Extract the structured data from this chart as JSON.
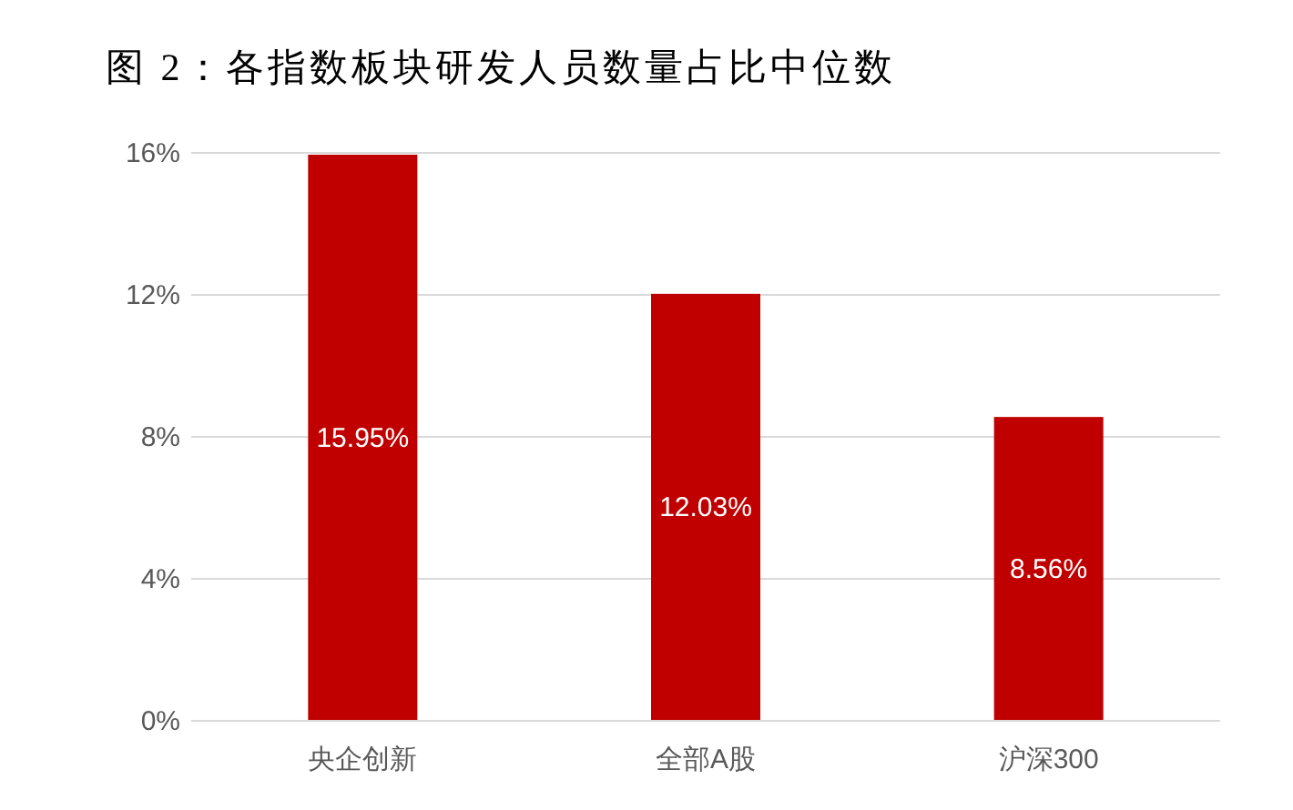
{
  "chart_data": {
    "type": "bar",
    "title": "图 2：各指数板块研发人员数量占比中位数",
    "categories": [
      "央企创新",
      "全部A股",
      "沪深300"
    ],
    "values": [
      15.95,
      12.03,
      8.56
    ],
    "value_labels": [
      "15.95%",
      "12.03%",
      "8.56%"
    ],
    "color": "#c00000",
    "ylim": [
      0,
      16
    ],
    "yticks": [
      {
        "value": 0,
        "label": "0%"
      },
      {
        "value": 4,
        "label": "4%"
      },
      {
        "value": 8,
        "label": "8%"
      },
      {
        "value": 12,
        "label": "12%"
      },
      {
        "value": 16,
        "label": "16%"
      }
    ],
    "grid": "y"
  }
}
